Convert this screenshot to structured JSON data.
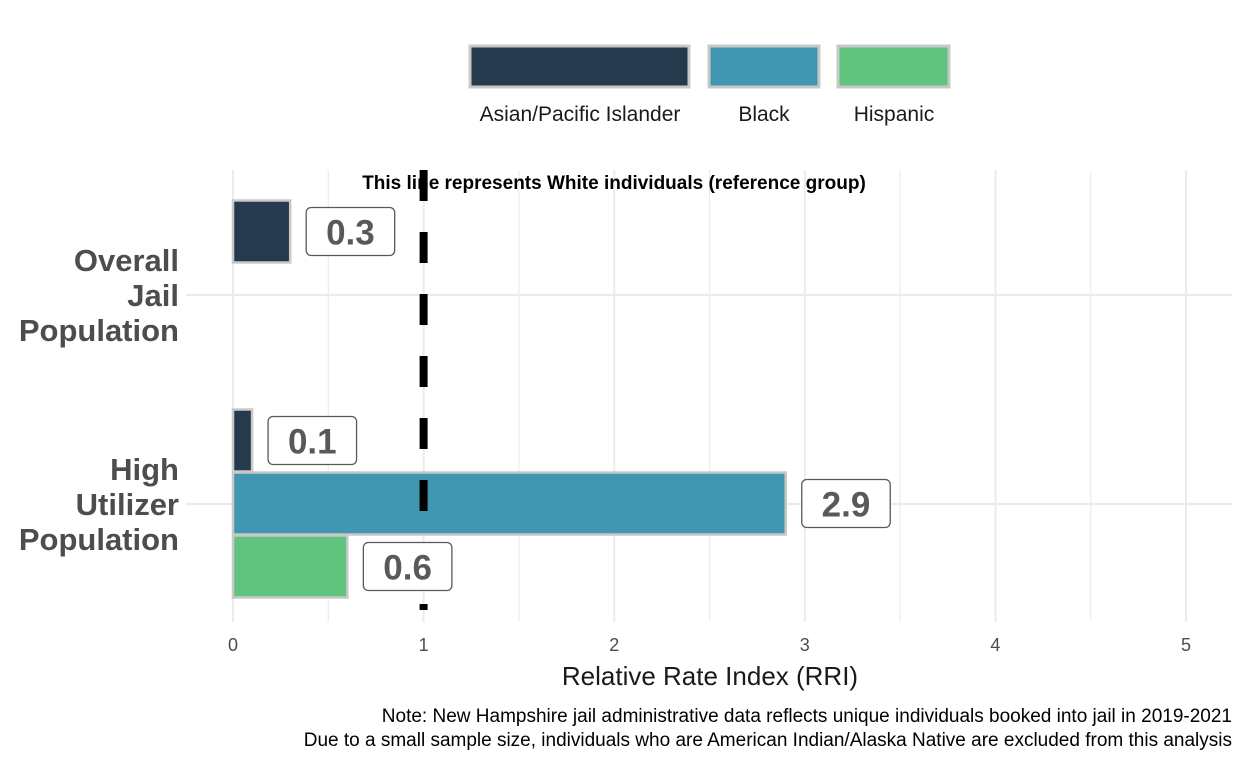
{
  "chart_data": {
    "type": "bar",
    "orientation": "horizontal",
    "categories": [
      "Overall Jail Population",
      "High Utilizer Population"
    ],
    "category_lines": [
      [
        "Overall",
        "Jail",
        "Population"
      ],
      [
        "High",
        "Utilizer",
        "Population"
      ]
    ],
    "series": [
      {
        "name": "Asian/Pacific Islander",
        "color": "#263a4d",
        "values": [
          0.3,
          0.1
        ]
      },
      {
        "name": "Black",
        "color": "#4196b1",
        "values": [
          null,
          2.9
        ]
      },
      {
        "name": "Hispanic",
        "color": "#60c47e",
        "values": [
          null,
          0.6
        ]
      }
    ],
    "xlabel": "Relative Rate Index (RRI)",
    "xlim": [
      0,
      5
    ],
    "xticks": [
      0,
      1,
      2,
      3,
      4,
      5
    ],
    "reference_line": {
      "value": 1,
      "label": "This line represents White individuals (reference group)"
    },
    "legend_position": "top",
    "grid": true,
    "notes": [
      "Note: New Hampshire jail administrative data reflects unique individuals booked into jail in 2019-2021",
      "Due to a small sample size, individuals who are American Indian/Alaska Native are excluded from this analysis"
    ]
  }
}
